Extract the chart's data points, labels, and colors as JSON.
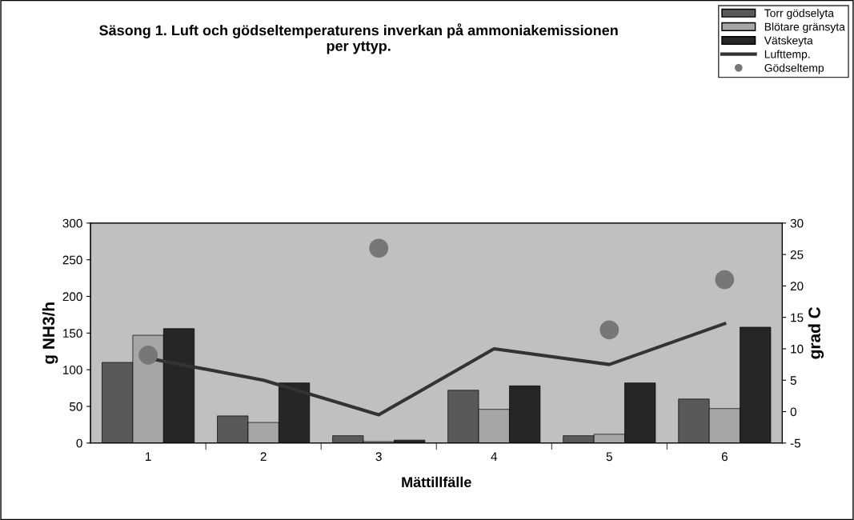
{
  "chart_data": {
    "type": "bar",
    "title": "Säsong 1. Luft och gödseltemperaturens inverkan på ammoniakemissionen\nper yttyp.",
    "xlabel": "Mättillfälle",
    "ylabel": "g NH3/h",
    "y2label": "grad C",
    "categories": [
      "1",
      "2",
      "3",
      "4",
      "5",
      "6"
    ],
    "series": [
      {
        "name": "Torr gödselyta",
        "color": "#595959",
        "values": [
          110,
          37,
          10,
          72,
          10,
          60
        ]
      },
      {
        "name": "Blötare gränsyta",
        "color": "#a6a6a6",
        "values": [
          147,
          28,
          2,
          46,
          12,
          47
        ]
      },
      {
        "name": "Vätskeyta",
        "color": "#262626",
        "values": [
          156,
          82,
          4,
          78,
          82,
          158
        ]
      },
      {
        "name": "Lufttemp.",
        "type": "line",
        "axis": "y2",
        "color": "#333333",
        "values": [
          8.5,
          5,
          -0.5,
          10,
          7.5,
          14
        ]
      },
      {
        "name": "Gödseltemp",
        "type": "scatter",
        "axis": "y2",
        "marker": "circle",
        "color": "#777777",
        "values": [
          9,
          null,
          26,
          null,
          13,
          21
        ]
      }
    ],
    "ylim": [
      0,
      300
    ],
    "yticks": [
      0,
      50,
      100,
      150,
      200,
      250,
      300
    ],
    "y2lim": [
      -5,
      30
    ],
    "y2ticks": [
      -5,
      0,
      5,
      10,
      15,
      20,
      25,
      30
    ],
    "grid": false,
    "legend": "top right"
  }
}
